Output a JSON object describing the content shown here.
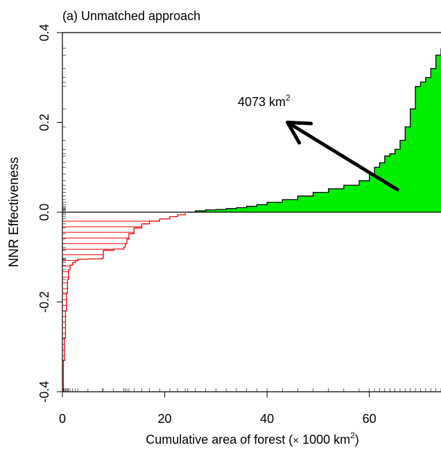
{
  "chart_data": {
    "type": "area",
    "panel_title": "(a) Unmatched approach",
    "ylabel": "NNR Effectiveness",
    "xlabel_prefix": "Cumulative area of forest (",
    "xlabel_times": "×",
    "xlabel_unit": " 1000 km",
    "xlabel_sup": "2",
    "xlabel_suffix": ")",
    "xlim": [
      0,
      74
    ],
    "ylim": [
      -0.4,
      0.4
    ],
    "x_ticks": [
      0,
      20,
      40,
      60
    ],
    "x_tick_labels": [
      "0",
      "20",
      "40",
      "60"
    ],
    "y_ticks": [
      -0.4,
      -0.2,
      0.0,
      0.2,
      0.4
    ],
    "y_tick_labels": [
      "-0.4",
      "-0.2",
      "0.0",
      "0.2",
      "0.4"
    ],
    "positive_color": "#00ee00",
    "negative_color": "#ee0000",
    "series": [
      {
        "points": [
          [
            0.0,
            -0.4
          ],
          [
            0.2,
            -0.33
          ],
          [
            0.4,
            -0.28
          ],
          [
            0.6,
            -0.22
          ],
          [
            0.8,
            -0.18
          ],
          [
            1.0,
            -0.15
          ],
          [
            1.2,
            -0.128
          ],
          [
            1.5,
            -0.118
          ],
          [
            2.0,
            -0.112
          ],
          [
            2.5,
            -0.108
          ],
          [
            3.0,
            -0.105
          ],
          [
            5.0,
            -0.104
          ],
          [
            7.8,
            -0.102
          ],
          [
            8.0,
            -0.085
          ],
          [
            10.0,
            -0.082
          ],
          [
            12.0,
            -0.078
          ],
          [
            12.3,
            -0.07
          ],
          [
            12.6,
            -0.06
          ],
          [
            13.0,
            -0.048
          ],
          [
            14.0,
            -0.035
          ],
          [
            15.5,
            -0.026
          ],
          [
            17.0,
            -0.02
          ],
          [
            19.0,
            -0.015
          ],
          [
            21.0,
            -0.01
          ],
          [
            22.5,
            -0.006
          ],
          [
            24.0,
            -0.002
          ],
          [
            24.5,
            0.0
          ],
          [
            26.0,
            0.003
          ],
          [
            28.0,
            0.005
          ],
          [
            30.0,
            0.006
          ],
          [
            32.0,
            0.008
          ],
          [
            34.0,
            0.01
          ],
          [
            36.0,
            0.013
          ],
          [
            38.0,
            0.017
          ],
          [
            40.0,
            0.022
          ],
          [
            43.0,
            0.028
          ],
          [
            46.0,
            0.036
          ],
          [
            49.0,
            0.044
          ],
          [
            52.0,
            0.052
          ],
          [
            55.0,
            0.06
          ],
          [
            58.0,
            0.07
          ],
          [
            60.0,
            0.085
          ],
          [
            61.0,
            0.1
          ],
          [
            62.0,
            0.11
          ],
          [
            63.0,
            0.125
          ],
          [
            64.0,
            0.13
          ],
          [
            65.0,
            0.14
          ],
          [
            66.0,
            0.16
          ],
          [
            67.0,
            0.19
          ],
          [
            68.0,
            0.23
          ],
          [
            69.0,
            0.28
          ],
          [
            70.0,
            0.29
          ],
          [
            71.0,
            0.3
          ],
          [
            72.0,
            0.32
          ],
          [
            73.0,
            0.35
          ],
          [
            74.0,
            0.365
          ]
        ]
      }
    ],
    "annotation": {
      "label": "4073 km",
      "label_sup": "2",
      "arrow_from": [
        65.5,
        0.05
      ],
      "arrow_to": [
        44.0,
        0.2
      ]
    },
    "grid": false,
    "rug": "both axes"
  }
}
